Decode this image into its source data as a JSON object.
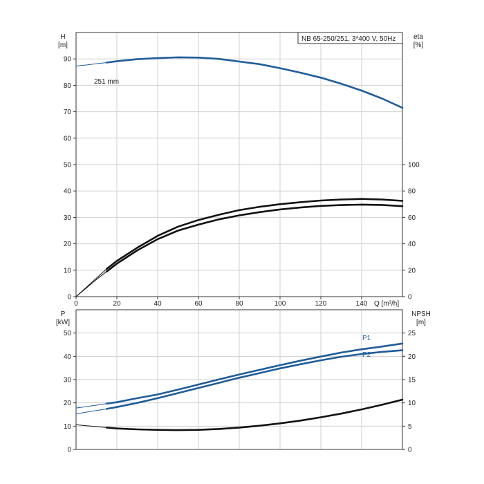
{
  "colors": {
    "blue": "#1f5c99",
    "black": "#111111"
  },
  "chart_data": [
    {
      "type": "line",
      "title": "NB 65-250/251, 3*400 V, 50Hz",
      "xlabel": "Q [m³/h]",
      "x_ticks": [
        "0",
        "20",
        "40",
        "60",
        "80",
        "100",
        "120",
        "140"
      ],
      "xlim": [
        0,
        160
      ],
      "ylabel_left": [
        "H",
        "[m]"
      ],
      "ylim_left": [
        0,
        100
      ],
      "y_ticks_left": [
        "0",
        "10",
        "20",
        "30",
        "40",
        "50",
        "60",
        "70",
        "80",
        "90"
      ],
      "ylabel_right": [
        "eta",
        "[%]"
      ],
      "ylim_right": [
        0,
        200
      ],
      "y_ticks_right": [
        "0",
        "20",
        "40",
        "60",
        "80",
        "100"
      ],
      "grid": true,
      "annotations": [
        "251 mm"
      ],
      "series": [
        {
          "color": "#1f5c99",
          "axis": "left",
          "thin": [
            [
              0,
              87.3
            ],
            [
              5,
              87.7
            ],
            [
              10,
              88.2
            ],
            [
              15,
              88.6
            ]
          ],
          "bold": [
            [
              15,
              88.6
            ],
            [
              20,
              89.1
            ],
            [
              30,
              89.9
            ],
            [
              40,
              90.3
            ],
            [
              50,
              90.6
            ],
            [
              60,
              90.5
            ],
            [
              70,
              90.0
            ],
            [
              80,
              89.0
            ],
            [
              90,
              88.0
            ],
            [
              100,
              86.5
            ],
            [
              110,
              84.8
            ],
            [
              120,
              82.9
            ],
            [
              130,
              80.6
            ],
            [
              140,
              78.0
            ],
            [
              150,
              75.0
            ],
            [
              160,
              71.5
            ]
          ]
        },
        {
          "color": "#111111",
          "axis": "right",
          "thin": [
            [
              0,
              0
            ],
            [
              5,
              7
            ],
            [
              10,
              14
            ],
            [
              15,
              21
            ]
          ],
          "bold": [
            [
              15,
              21
            ],
            [
              20,
              27
            ],
            [
              30,
              37
            ],
            [
              40,
              46
            ],
            [
              50,
              53
            ],
            [
              60,
              58
            ],
            [
              70,
              62
            ],
            [
              80,
              65.5
            ],
            [
              90,
              68
            ],
            [
              100,
              70
            ],
            [
              110,
              71.5
            ],
            [
              120,
              72.8
            ],
            [
              130,
              73.5
            ],
            [
              140,
              74
            ],
            [
              150,
              73.5
            ],
            [
              160,
              72.5
            ]
          ]
        },
        {
          "color": "#111111",
          "axis": "right",
          "thin": [
            [
              0,
              0
            ],
            [
              5,
              6.5
            ],
            [
              10,
              13
            ],
            [
              15,
              19
            ]
          ],
          "bold": [
            [
              15,
              19
            ],
            [
              20,
              25
            ],
            [
              30,
              35
            ],
            [
              40,
              43.5
            ],
            [
              50,
              50
            ],
            [
              60,
              54.5
            ],
            [
              70,
              58.5
            ],
            [
              80,
              61.5
            ],
            [
              90,
              64
            ],
            [
              100,
              66
            ],
            [
              110,
              67.5
            ],
            [
              120,
              68.7
            ],
            [
              130,
              69.3
            ],
            [
              140,
              69.7
            ],
            [
              150,
              69.4
            ],
            [
              160,
              68.5
            ]
          ]
        }
      ]
    },
    {
      "type": "line",
      "xlim": [
        0,
        160
      ],
      "ylabel_left": [
        "P",
        "[kW]"
      ],
      "ylim_left": [
        0,
        60
      ],
      "y_ticks_left": [
        "0",
        "10",
        "20",
        "30",
        "40",
        "50"
      ],
      "ylabel_right": [
        "NPSH",
        "[m]"
      ],
      "ylim_right": [
        0,
        30
      ],
      "y_ticks_right": [
        "0",
        "5",
        "10",
        "15",
        "20",
        "25"
      ],
      "grid": true,
      "series": [
        {
          "name": "P1",
          "color": "#1f5c99",
          "axis": "left",
          "thin": [
            [
              0,
              17.8
            ],
            [
              5,
              18.4
            ],
            [
              10,
              19.0
            ],
            [
              15,
              19.7
            ]
          ],
          "bold": [
            [
              15,
              19.7
            ],
            [
              20,
              20.3
            ],
            [
              30,
              22.0
            ],
            [
              40,
              23.6
            ],
            [
              50,
              25.7
            ],
            [
              60,
              27.9
            ],
            [
              70,
              30.1
            ],
            [
              80,
              32.2
            ],
            [
              90,
              34.2
            ],
            [
              100,
              36.2
            ],
            [
              110,
              38.1
            ],
            [
              120,
              39.9
            ],
            [
              130,
              41.6
            ],
            [
              140,
              43.0
            ],
            [
              150,
              44.2
            ],
            [
              160,
              45.5
            ]
          ]
        },
        {
          "name": "P2",
          "color": "#1f5c99",
          "axis": "left",
          "thin": [
            [
              0,
              15.3
            ],
            [
              5,
              16.0
            ],
            [
              10,
              16.7
            ],
            [
              15,
              17.4
            ]
          ],
          "bold": [
            [
              15,
              17.4
            ],
            [
              20,
              18.2
            ],
            [
              30,
              20.0
            ],
            [
              40,
              22.0
            ],
            [
              50,
              24.2
            ],
            [
              60,
              26.4
            ],
            [
              70,
              28.6
            ],
            [
              80,
              30.8
            ],
            [
              90,
              32.8
            ],
            [
              100,
              34.8
            ],
            [
              110,
              36.6
            ],
            [
              120,
              38.3
            ],
            [
              130,
              39.8
            ],
            [
              140,
              41.0
            ],
            [
              150,
              41.9
            ],
            [
              160,
              42.6
            ]
          ]
        },
        {
          "color": "#111111",
          "axis": "right",
          "thin": [
            [
              0,
              5.3
            ],
            [
              5,
              5.1
            ],
            [
              10,
              4.9
            ],
            [
              15,
              4.7
            ]
          ],
          "bold": [
            [
              15,
              4.7
            ],
            [
              20,
              4.5
            ],
            [
              30,
              4.3
            ],
            [
              40,
              4.2
            ],
            [
              50,
              4.15
            ],
            [
              60,
              4.2
            ],
            [
              70,
              4.4
            ],
            [
              80,
              4.7
            ],
            [
              90,
              5.1
            ],
            [
              100,
              5.6
            ],
            [
              110,
              6.2
            ],
            [
              120,
              6.9
            ],
            [
              130,
              7.7
            ],
            [
              140,
              8.6
            ],
            [
              150,
              9.6
            ],
            [
              160,
              10.7
            ]
          ]
        }
      ]
    }
  ]
}
